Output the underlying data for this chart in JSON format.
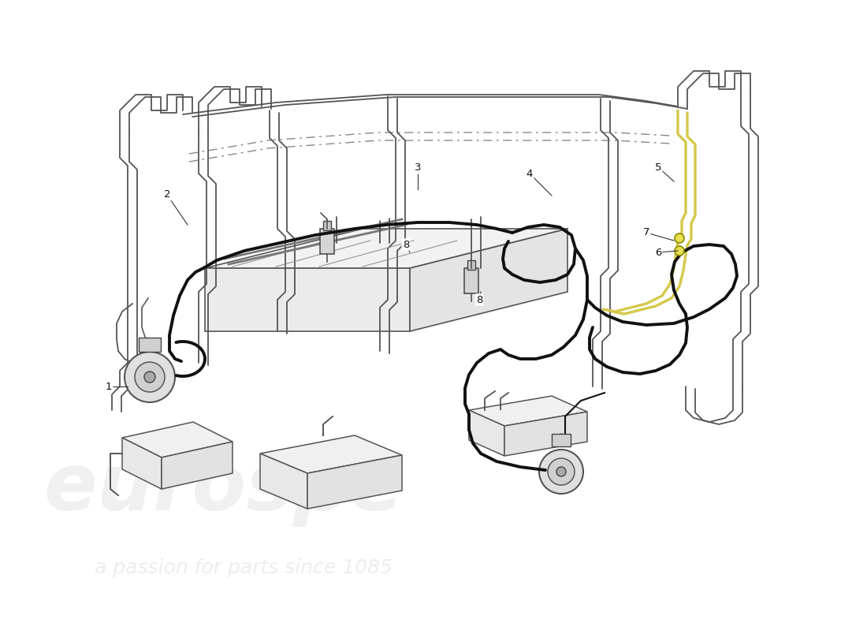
{
  "bg_color": "#ffffff",
  "line_thin": "#555555",
  "line_thick": "#111111",
  "line_yellow": "#d4c84a",
  "line_dash": "#888888",
  "lw_thin": 1.3,
  "lw_thick": 2.8,
  "lw_yellow": 2.4,
  "figsize": [
    11.0,
    8.0
  ],
  "dpi": 100,
  "labels": [
    [
      "1",
      138,
      490
    ],
    [
      "2",
      212,
      247
    ],
    [
      "3",
      530,
      213
    ],
    [
      "4",
      672,
      220
    ],
    [
      "5",
      835,
      212
    ],
    [
      "6",
      835,
      320
    ],
    [
      "7",
      820,
      295
    ],
    [
      "8",
      515,
      310
    ],
    [
      "8",
      608,
      380
    ]
  ]
}
